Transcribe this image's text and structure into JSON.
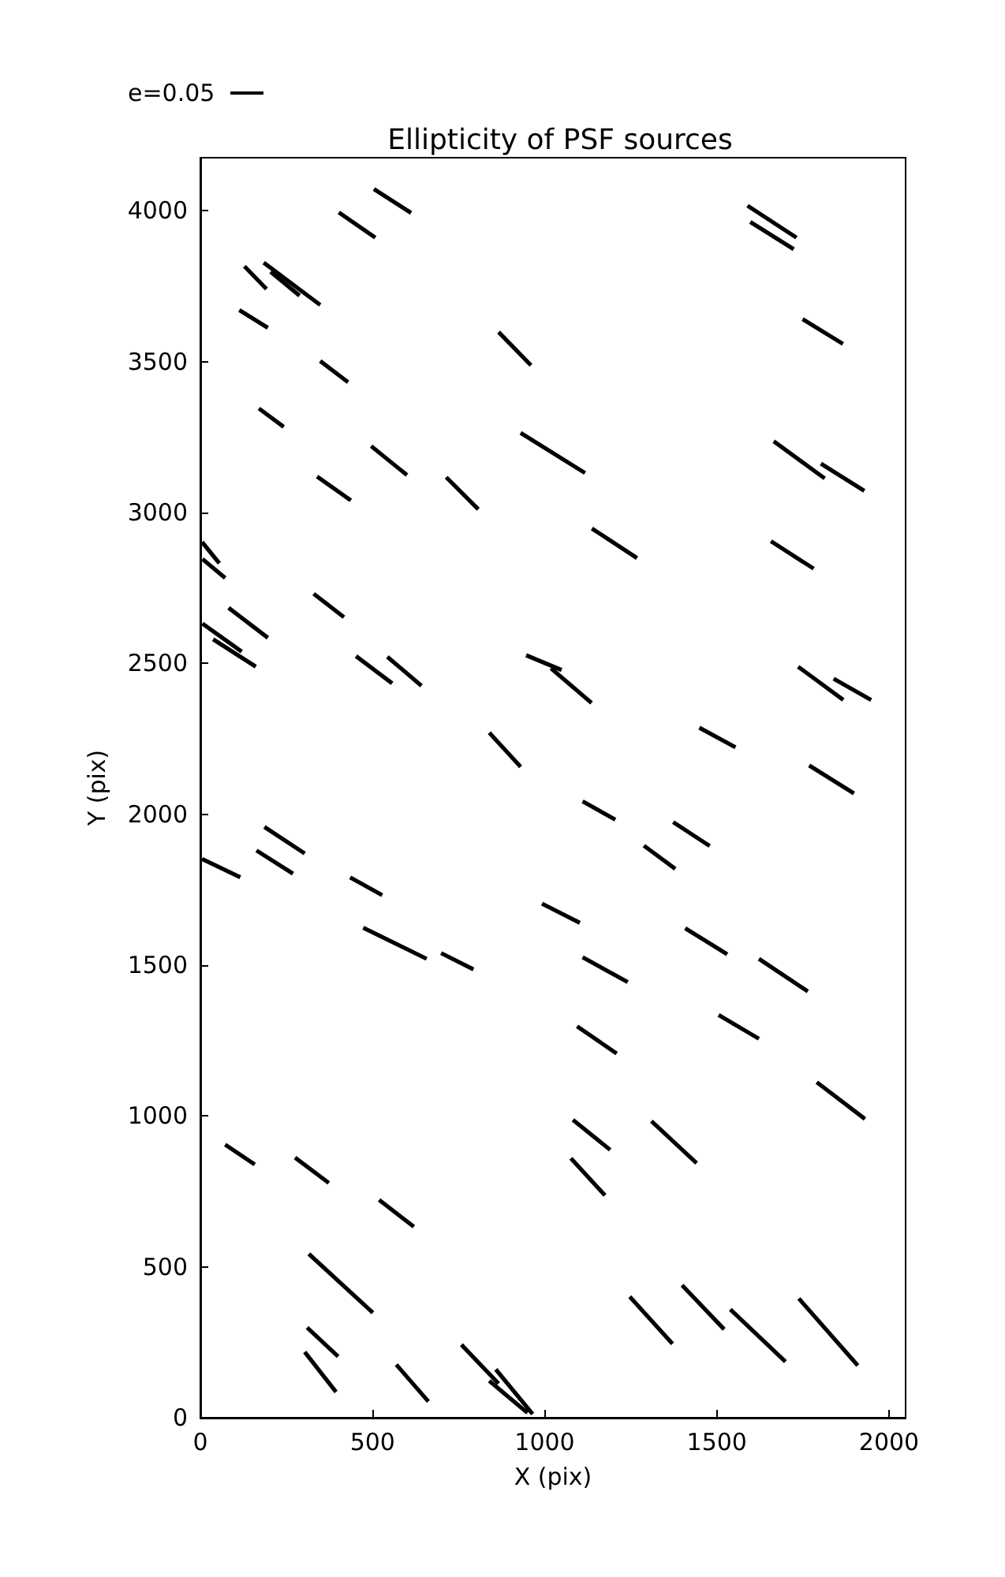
{
  "chart_data": {
    "type": "line",
    "title": "Ellipticity of PSF sources",
    "xlabel": "X (pix)",
    "ylabel": "Y (pix)",
    "annotations": [
      "e=0.05"
    ],
    "xlim": [
      0,
      2048
    ],
    "xticks": [
      0,
      500,
      1000,
      1500,
      2000
    ],
    "ylim": [
      0,
      4176
    ],
    "yticks": [
      0,
      500,
      1000,
      1500,
      2000,
      2500,
      3000,
      3500,
      4000
    ],
    "marker": "none",
    "line_style": "solid",
    "grid": false,
    "series": [
      {
        "color": "#000000",
        "x": [
          504,
          612
        ],
        "values": [
          4072,
          3993
        ]
      },
      {
        "color": "#000000",
        "x": [
          402,
          508
        ],
        "values": [
          3995,
          3911
        ]
      },
      {
        "color": "#000000",
        "x": [
          128,
          192
        ],
        "values": [
          3816,
          3741
        ]
      },
      {
        "color": "#000000",
        "x": [
          184,
          348
        ],
        "values": [
          3828,
          3688
        ]
      },
      {
        "color": "#000000",
        "x": [
          204,
          288
        ],
        "values": [
          3798,
          3719
        ]
      },
      {
        "color": "#000000",
        "x": [
          113,
          196
        ],
        "values": [
          3671,
          3612
        ]
      },
      {
        "color": "#000000",
        "x": [
          866,
          960
        ],
        "values": [
          3598,
          3488
        ]
      },
      {
        "color": "#000000",
        "x": [
          348,
          429
        ],
        "values": [
          3502,
          3432
        ]
      },
      {
        "color": "#000000",
        "x": [
          170,
          242
        ],
        "values": [
          3345,
          3284
        ]
      },
      {
        "color": "#000000",
        "x": [
          930,
          1117
        ],
        "values": [
          3264,
          3131
        ]
      },
      {
        "color": "#000000",
        "x": [
          496,
          600
        ],
        "values": [
          3220,
          3124
        ]
      },
      {
        "color": "#000000",
        "x": [
          339,
          437
        ],
        "values": [
          3119,
          3040
        ]
      },
      {
        "color": "#000000",
        "x": [
          714,
          807
        ],
        "values": [
          3117,
          3011
        ]
      },
      {
        "color": "#000000",
        "x": [
          5,
          55
        ],
        "values": [
          2902,
          2832
        ]
      },
      {
        "color": "#000000",
        "x": [
          6,
          72
        ],
        "values": [
          2846,
          2783
        ]
      },
      {
        "color": "#000000",
        "x": [
          1589,
          1731
        ],
        "values": [
          4017,
          3911
        ]
      },
      {
        "color": "#000000",
        "x": [
          1597,
          1723
        ],
        "values": [
          3963,
          3873
        ]
      },
      {
        "color": "#000000",
        "x": [
          1749,
          1866
        ],
        "values": [
          3641,
          3559
        ]
      },
      {
        "color": "#000000",
        "x": [
          1665,
          1813
        ],
        "values": [
          3236,
          3113
        ]
      },
      {
        "color": "#000000",
        "x": [
          1802,
          1928
        ],
        "values": [
          3162,
          3072
        ]
      },
      {
        "color": "#000000",
        "x": [
          1137,
          1268
        ],
        "values": [
          2947,
          2849
        ]
      },
      {
        "color": "#000000",
        "x": [
          1657,
          1781
        ],
        "values": [
          2905,
          2814
        ]
      },
      {
        "color": "#000000",
        "x": [
          6,
          120
        ],
        "values": [
          2632,
          2539
        ]
      },
      {
        "color": "#000000",
        "x": [
          82,
          196
        ],
        "values": [
          2684,
          2585
        ]
      },
      {
        "color": "#000000",
        "x": [
          37,
          161
        ],
        "values": [
          2580,
          2489
        ]
      },
      {
        "color": "#000000",
        "x": [
          329,
          417
        ],
        "values": [
          2731,
          2653
        ]
      },
      {
        "color": "#000000",
        "x": [
          452,
          557
        ],
        "values": [
          2524,
          2434
        ]
      },
      {
        "color": "#000000",
        "x": [
          543,
          642
        ],
        "values": [
          2522,
          2426
        ]
      },
      {
        "color": "#000000",
        "x": [
          946,
          1049
        ],
        "values": [
          2527,
          2478
        ]
      },
      {
        "color": "#000000",
        "x": [
          1018,
          1136
        ],
        "values": [
          2484,
          2369
        ]
      },
      {
        "color": "#000000",
        "x": [
          839,
          930
        ],
        "values": [
          2270,
          2157
        ]
      },
      {
        "color": "#000000",
        "x": [
          186,
          303
        ],
        "values": [
          1958,
          1870
        ]
      },
      {
        "color": "#000000",
        "x": [
          163,
          269
        ],
        "values": [
          1880,
          1803
        ]
      },
      {
        "color": "#000000",
        "x": [
          5,
          116
        ],
        "values": [
          1852,
          1791
        ]
      },
      {
        "color": "#000000",
        "x": [
          435,
          528
        ],
        "values": [
          1791,
          1732
        ]
      },
      {
        "color": "#000000",
        "x": [
          473,
          657
        ],
        "values": [
          1624,
          1521
        ]
      },
      {
        "color": "#000000",
        "x": [
          699,
          793
        ],
        "values": [
          1540,
          1486
        ]
      },
      {
        "color": "#000000",
        "x": [
          1736,
          1867
        ],
        "values": [
          2489,
          2379
        ]
      },
      {
        "color": "#000000",
        "x": [
          1839,
          1948
        ],
        "values": [
          2449,
          2379
        ]
      },
      {
        "color": "#000000",
        "x": [
          1449,
          1554
        ],
        "values": [
          2287,
          2222
        ]
      },
      {
        "color": "#000000",
        "x": [
          1768,
          1898
        ],
        "values": [
          2162,
          2069
        ]
      },
      {
        "color": "#000000",
        "x": [
          1110,
          1205
        ],
        "values": [
          2043,
          1982
        ]
      },
      {
        "color": "#000000",
        "x": [
          1373,
          1479
        ],
        "values": [
          1974,
          1895
        ]
      },
      {
        "color": "#000000",
        "x": [
          1288,
          1379
        ],
        "values": [
          1896,
          1819
        ]
      },
      {
        "color": "#000000",
        "x": [
          992,
          1102
        ],
        "values": [
          1704,
          1640
        ]
      },
      {
        "color": "#000000",
        "x": [
          1408,
          1530
        ],
        "values": [
          1622,
          1536
        ]
      },
      {
        "color": "#000000",
        "x": [
          1110,
          1241
        ],
        "values": [
          1526,
          1444
        ]
      },
      {
        "color": "#000000",
        "x": [
          1622,
          1764
        ],
        "values": [
          1521,
          1413
        ]
      },
      {
        "color": "#000000",
        "x": [
          1094,
          1209
        ],
        "values": [
          1297,
          1207
        ]
      },
      {
        "color": "#000000",
        "x": [
          1505,
          1622
        ],
        "values": [
          1335,
          1256
        ]
      },
      {
        "color": "#000000",
        "x": [
          1790,
          1930
        ],
        "values": [
          1112,
          990
        ]
      },
      {
        "color": "#000000",
        "x": [
          1082,
          1190
        ],
        "values": [
          987,
          888
        ]
      },
      {
        "color": "#000000",
        "x": [
          1310,
          1441
        ],
        "values": [
          983,
          844
        ]
      },
      {
        "color": "#000000",
        "x": [
          1076,
          1175
        ],
        "values": [
          860,
          737
        ]
      },
      {
        "color": "#000000",
        "x": [
          1247,
          1371
        ],
        "values": [
          401,
          245
        ]
      },
      {
        "color": "#000000",
        "x": [
          1399,
          1521
        ],
        "values": [
          439,
          293
        ]
      },
      {
        "color": "#000000",
        "x": [
          1539,
          1699
        ],
        "values": [
          359,
          186
        ]
      },
      {
        "color": "#000000",
        "x": [
          1738,
          1909
        ],
        "values": [
          395,
          173
        ]
      },
      {
        "color": "#000000",
        "x": [
          72,
          158
        ],
        "values": [
          905,
          839
        ]
      },
      {
        "color": "#000000",
        "x": [
          275,
          373
        ],
        "values": [
          862,
          778
        ]
      },
      {
        "color": "#000000",
        "x": [
          519,
          620
        ],
        "values": [
          722,
          633
        ]
      },
      {
        "color": "#000000",
        "x": [
          315,
          501
        ],
        "values": [
          543,
          348
        ]
      },
      {
        "color": "#000000",
        "x": [
          310,
          400
        ],
        "values": [
          299,
          203
        ]
      },
      {
        "color": "#000000",
        "x": [
          303,
          394
        ],
        "values": [
          218,
          85
        ]
      },
      {
        "color": "#000000",
        "x": [
          569,
          662
        ],
        "values": [
          176,
          54
        ]
      },
      {
        "color": "#000000",
        "x": [
          758,
          866
        ],
        "values": [
          242,
          113
        ]
      },
      {
        "color": "#000000",
        "x": [
          858,
          965
        ],
        "values": [
          160,
          12
        ]
      },
      {
        "color": "#000000",
        "x": [
          839,
          950
        ],
        "values": [
          122,
          16
        ]
      }
    ]
  }
}
